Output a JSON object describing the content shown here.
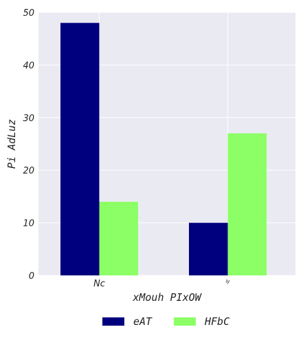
{
  "chart_data": {
    "type": "bar",
    "categories": [
      "Nc",
      "ly"
    ],
    "series": [
      {
        "name": "eAT",
        "values": [
          48,
          10
        ],
        "color": "#00007f"
      },
      {
        "name": "HFbC",
        "values": [
          14,
          27
        ],
        "color": "#8cff66"
      }
    ],
    "xlabel": "xMouh PIxOW",
    "ylabel": "Pi  AdLuz",
    "ylim": [
      0,
      50
    ],
    "yticks": [
      0,
      10,
      20,
      30,
      40,
      50
    ],
    "grid": true,
    "legend_position": "bottom-center",
    "background_color": "#eaeaf2"
  }
}
